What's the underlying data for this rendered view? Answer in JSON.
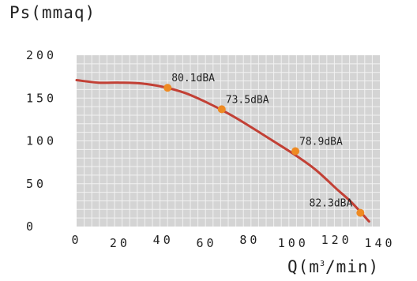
{
  "chart_data": {
    "type": "line",
    "ylabel": "Ps(mmaq)",
    "xlabel_prefix": "Q(m",
    "xlabel_sup": "3",
    "xlabel_suffix": "/min)",
    "xlim": [
      0,
      140
    ],
    "ylim": [
      0,
      200
    ],
    "x_ticks": [
      {
        "value": 0,
        "label": "0"
      },
      {
        "value": 20,
        "label": "20"
      },
      {
        "value": 40,
        "label": "40"
      },
      {
        "value": 60,
        "label": "60"
      },
      {
        "value": 80,
        "label": "80"
      },
      {
        "value": 100,
        "label": "100"
      },
      {
        "value": 120,
        "label": "120"
      },
      {
        "value": 140,
        "label": "140"
      }
    ],
    "y_ticks": [
      {
        "value": 0,
        "label": "0"
      },
      {
        "value": 50,
        "label": "50"
      },
      {
        "value": 100,
        "label": "100"
      },
      {
        "value": 150,
        "label": "150"
      },
      {
        "value": 200,
        "label": "200"
      }
    ],
    "grid": true,
    "curve": {
      "x": [
        0,
        10,
        20,
        30,
        40,
        50,
        60,
        70,
        80,
        90,
        100,
        110,
        120,
        127,
        135
      ],
      "y": [
        171,
        168,
        168,
        167,
        163,
        156,
        145,
        132,
        117,
        101,
        85,
        67,
        44,
        28,
        6
      ]
    },
    "points": [
      {
        "x": 42,
        "y": 162,
        "label": "80.1dBA"
      },
      {
        "x": 67,
        "y": 137,
        "label": "73.5dBA"
      },
      {
        "x": 101,
        "y": 88,
        "label": "78.9dBA"
      },
      {
        "x": 131,
        "y": 16,
        "label": "82.3dBA"
      }
    ],
    "colors": {
      "grid_background": "#d4d4d4",
      "grid_line": "#f2f2f2",
      "curve": "#c24035",
      "point": "#ee8a22",
      "text": "#222222"
    }
  }
}
